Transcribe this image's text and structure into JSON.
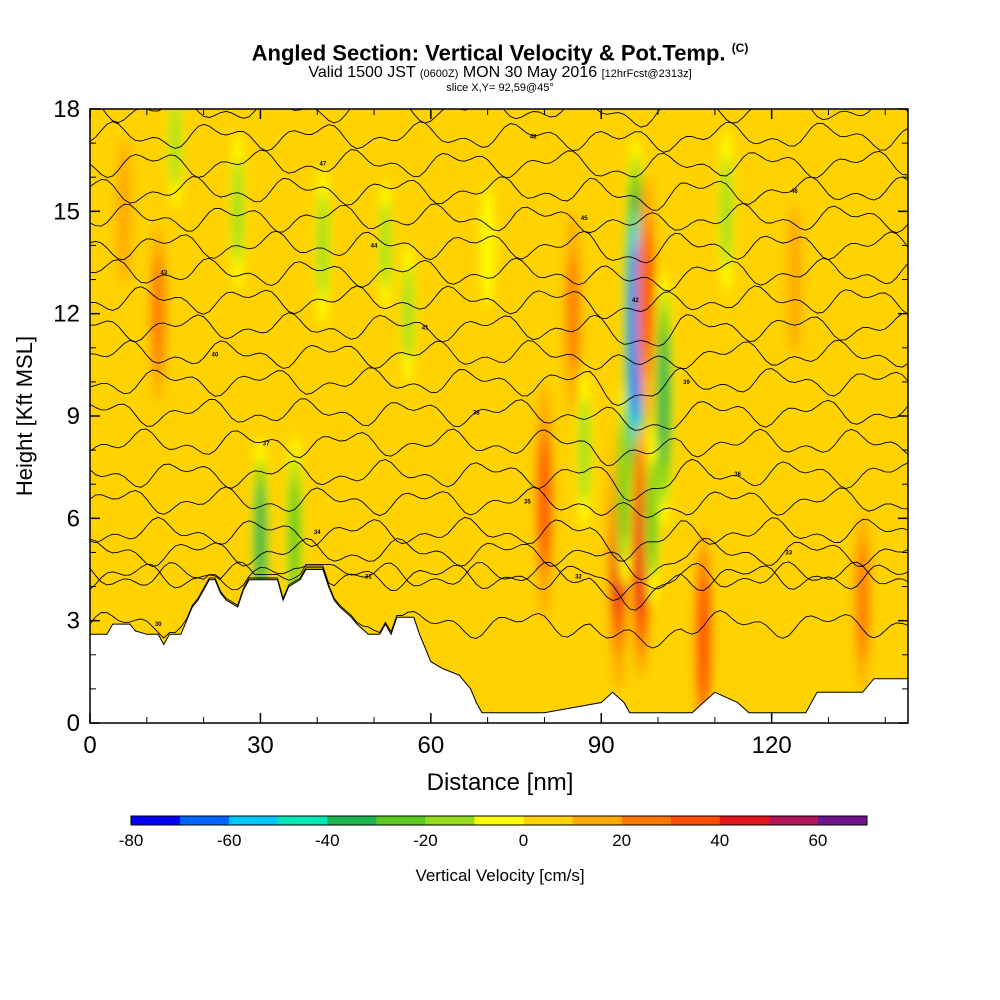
{
  "title": {
    "main": "Angled Section: Vertical Velocity & Pot.Temp.",
    "main_suffix": "(C)",
    "valid_prefix": "Valid 1500 JST",
    "valid_zone": "(0600Z)",
    "valid_date": "MON 30 May 2016",
    "valid_fcst": "[12hrFcst@2313z]",
    "slice": "slice X,Y= 92,59@45°"
  },
  "chart_data": {
    "type": "heatmap",
    "title": "Angled Section: Vertical Velocity & Pot.Temp. (C)",
    "xlabel": "Distance [nm]",
    "ylabel": "Height [Kft MSL]",
    "xlim": [
      0,
      144
    ],
    "ylim": [
      0,
      18
    ],
    "xticks": [
      0,
      30,
      60,
      90,
      120
    ],
    "xtick_labels": [
      "0",
      "30",
      "60",
      "90",
      "120"
    ],
    "yticks": [
      0,
      3,
      6,
      9,
      12,
      15,
      18
    ],
    "ytick_labels": [
      "0",
      "3",
      "6",
      "9",
      "12",
      "15",
      "18"
    ],
    "grid": false,
    "colorbar": {
      "label": "Vertical Velocity [cm/s]",
      "bounds": [
        -80,
        70
      ],
      "step": 10,
      "tick_values": [
        -80,
        -60,
        -40,
        -20,
        0,
        20,
        40,
        60
      ],
      "tick_labels": [
        "-80",
        "-60",
        "-40",
        "-20",
        "0",
        "20",
        "40",
        "60"
      ],
      "colors": [
        "#0000ff",
        "#0066ff",
        "#00c8ff",
        "#00e6b4",
        "#1eb450",
        "#5ac81e",
        "#96dc1e",
        "#ffff00",
        "#ffd200",
        "#ffaa00",
        "#ff7800",
        "#ff4b00",
        "#e6141e",
        "#b4145a",
        "#6e148c"
      ]
    },
    "terrain": [
      [
        0,
        2.6
      ],
      [
        3,
        2.6
      ],
      [
        4,
        2.9
      ],
      [
        7,
        2.9
      ],
      [
        8,
        2.7
      ],
      [
        10,
        2.6
      ],
      [
        12,
        2.6
      ],
      [
        13,
        2.3
      ],
      [
        14,
        2.6
      ],
      [
        16,
        2.6
      ],
      [
        17,
        3.0
      ],
      [
        18,
        3.4
      ],
      [
        19,
        3.6
      ],
      [
        20,
        3.9
      ],
      [
        21,
        4.2
      ],
      [
        22,
        4.2
      ],
      [
        23,
        3.8
      ],
      [
        24,
        3.6
      ],
      [
        25,
        3.5
      ],
      [
        26,
        3.4
      ],
      [
        27,
        3.9
      ],
      [
        28,
        4.2
      ],
      [
        33,
        4.2
      ],
      [
        34,
        3.6
      ],
      [
        35,
        4.0
      ],
      [
        37,
        4.2
      ],
      [
        38,
        4.5
      ],
      [
        41,
        4.5
      ],
      [
        42,
        4.0
      ],
      [
        43,
        3.6
      ],
      [
        44,
        3.4
      ],
      [
        46,
        3.1
      ],
      [
        47,
        2.9
      ],
      [
        49,
        2.6
      ],
      [
        50,
        2.6
      ],
      [
        51,
        2.6
      ],
      [
        52,
        2.9
      ],
      [
        53,
        2.6
      ],
      [
        54,
        3.1
      ],
      [
        57,
        3.1
      ],
      [
        58,
        2.6
      ],
      [
        59,
        2.2
      ],
      [
        60,
        1.8
      ],
      [
        62,
        1.6
      ],
      [
        65,
        1.4
      ],
      [
        67,
        1.0
      ],
      [
        68,
        0.6
      ],
      [
        69,
        0.3
      ],
      [
        80,
        0.3
      ],
      [
        90,
        0.6
      ],
      [
        92,
        0.9
      ],
      [
        94,
        0.6
      ],
      [
        95,
        0.3
      ],
      [
        100,
        0.3
      ],
      [
        105,
        0.3
      ],
      [
        106,
        0.3
      ],
      [
        108,
        0.6
      ],
      [
        110,
        0.9
      ],
      [
        114,
        0.6
      ],
      [
        116,
        0.3
      ],
      [
        120,
        0.3
      ],
      [
        126,
        0.3
      ],
      [
        128,
        0.9
      ],
      [
        136,
        0.9
      ],
      [
        138,
        1.3
      ],
      [
        144,
        1.3
      ]
    ],
    "anomalies": [
      {
        "x": 6,
        "y": 15,
        "value": 15
      },
      {
        "x": 12,
        "y": 12,
        "value": 22
      },
      {
        "x": 15,
        "y": 17,
        "value": -12
      },
      {
        "x": 26,
        "y": 15,
        "value": -18
      },
      {
        "x": 30,
        "y": 5.2,
        "value": -32
      },
      {
        "x": 36,
        "y": 5.5,
        "value": -28
      },
      {
        "x": 41,
        "y": 14,
        "value": -18
      },
      {
        "x": 52,
        "y": 14,
        "value": -12
      },
      {
        "x": 56,
        "y": 12,
        "value": -14
      },
      {
        "x": 70,
        "y": 14,
        "value": -10
      },
      {
        "x": 80,
        "y": 6.5,
        "value": 35
      },
      {
        "x": 85,
        "y": 12,
        "value": 28
      },
      {
        "x": 87,
        "y": 8,
        "value": -18
      },
      {
        "x": 93,
        "y": 5,
        "value": 45
      },
      {
        "x": 94,
        "y": 7,
        "value": -28
      },
      {
        "x": 96,
        "y": 11.5,
        "value": -70
      },
      {
        "x": 98,
        "y": 12.5,
        "value": 38
      },
      {
        "x": 97,
        "y": 5,
        "value": 40
      },
      {
        "x": 99,
        "y": 6,
        "value": -22
      },
      {
        "x": 101,
        "y": 9.5,
        "value": -40
      },
      {
        "x": 108,
        "y": 2.5,
        "value": 32
      },
      {
        "x": 112,
        "y": 15,
        "value": -20
      },
      {
        "x": 124,
        "y": 13,
        "value": 16
      },
      {
        "x": 136,
        "y": 3.6,
        "value": 22
      }
    ],
    "isentropes": {
      "base_height": [
        2.9,
        4.3,
        4.3,
        5.0,
        5.6,
        6.5,
        7.3,
        8.2,
        9.1,
        10.0,
        10.8,
        11.6,
        12.4,
        13.2,
        14.0,
        14.8,
        15.6,
        16.4,
        17.2,
        18.0
      ],
      "labels": [
        "30",
        "31",
        "32",
        "33",
        "34",
        "35",
        "36",
        "37",
        "38",
        "39",
        "40",
        "41",
        "42",
        "43",
        "44",
        "45",
        "46",
        "47",
        "48",
        "49"
      ]
    }
  },
  "colorbar_labels": [
    "-80",
    "-60",
    "-40",
    "-20",
    "0",
    "20",
    "40",
    "60"
  ]
}
